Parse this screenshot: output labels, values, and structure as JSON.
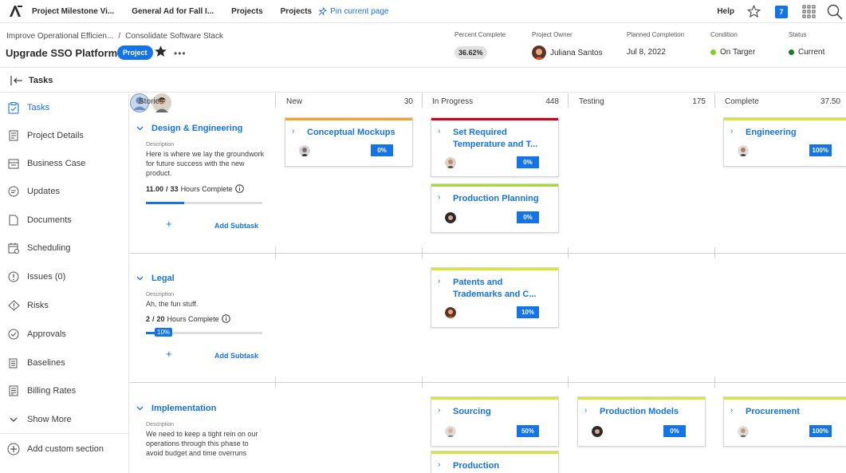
{
  "topnav": {
    "tabs": [
      "Project Milestone Vi...",
      "General Ad for Fall I...",
      "Projects",
      "Projects"
    ],
    "pin_label": "Pin current page",
    "help_label": "Help",
    "notification_count": "7"
  },
  "header": {
    "breadcrumbs": [
      "Improve Operational Efficien...",
      "/",
      "Consolidate Software Stack"
    ],
    "title": "Upgrade SSO Platform",
    "tag": "Project",
    "more": "•••",
    "percent_complete_label": "Percent Complete",
    "percent_complete_value": "36.62%",
    "owner_label": "Project Owner",
    "owner_value": "Juliana Santos",
    "planned_label": "Planned Completion",
    "planned_value": "Jul 8, 2022",
    "condition_label": "Condition",
    "condition_value": "On Targer",
    "condition_color": "#7ed321",
    "status_label": "Status",
    "status_value": "Current",
    "status_color": "#1d7a1d"
  },
  "subheader": {
    "title": "Tasks"
  },
  "sidebar": {
    "items": [
      {
        "label": "Tasks",
        "icon": "tasks-icon",
        "active": true
      },
      {
        "label": "Project Details",
        "icon": "document-icon"
      },
      {
        "label": "Business Case",
        "icon": "briefcase-icon"
      },
      {
        "label": "Updates",
        "icon": "chat-icon"
      },
      {
        "label": "Documents",
        "icon": "file-icon"
      },
      {
        "label": "Scheduling",
        "icon": "calendar-icon"
      },
      {
        "label": "Issues (0)",
        "icon": "alert-circle-icon"
      },
      {
        "label": "Risks",
        "icon": "warning-icon"
      },
      {
        "label": "Approvals",
        "icon": "check-circle-icon"
      },
      {
        "label": "Baselines",
        "icon": "baseline-icon"
      },
      {
        "label": "Billing Rates",
        "icon": "billing-icon"
      },
      {
        "label": "Show More",
        "icon": "chevron-down-icon"
      }
    ],
    "add_section": "Add custom section"
  },
  "board": {
    "columns": [
      {
        "name": "Stories",
        "count": ""
      },
      {
        "name": "New",
        "count": "30"
      },
      {
        "name": "In Progress",
        "count": "448"
      },
      {
        "name": "Testing",
        "count": "175"
      },
      {
        "name": "Complete",
        "count": "37.50"
      }
    ],
    "stories": [
      {
        "title": "Design & Engineering",
        "desc_label": "Description",
        "desc": "Here is where we lay the groundwork for future success with the new product.",
        "hours_done": "11.00",
        "hours_total": "33",
        "hours_suffix": "Hours Complete",
        "progress": 0.33,
        "add_subtask": "Add Subtask"
      },
      {
        "title": "Legal",
        "desc_label": "Description",
        "desc": "Ah, the fun stuff.",
        "hours_done": "2",
        "hours_total": "20",
        "hours_suffix": "Hours Complete",
        "progress": 0.1,
        "progress_label": "10%",
        "add_subtask": "Add Subtask"
      },
      {
        "title": "Implementation",
        "desc_label": "Description",
        "desc": "We need to keep a tight rein on our operations through this phase to avoid budget and time overruns"
      }
    ],
    "cards": {
      "c1": {
        "title": "Conceptual Mockups",
        "pct": "0%",
        "strip": "#f5a623"
      },
      "c2": {
        "title": "Set Required Temperature and T...",
        "pct": "0%",
        "strip": "#d0021b"
      },
      "c3": {
        "title": "Engineering",
        "pct": "100%",
        "strip": "#d8e639"
      },
      "c4": {
        "title": "Production Planning",
        "pct": "0%",
        "strip": "#a7d93b"
      },
      "c5": {
        "title": "Patents and Trademarks and C...",
        "pct": "10%",
        "strip": "#d8e639"
      },
      "c6": {
        "title": "Sourcing",
        "pct": "50%",
        "strip": "#d8e639"
      },
      "c7": {
        "title": "Production Models",
        "pct": "0%",
        "strip": "#d8e639"
      },
      "c8": {
        "title": "Procurement",
        "pct": "100%",
        "strip": "#d8e639"
      },
      "c9": {
        "title": "Production",
        "pct": "",
        "strip": "#d8e639"
      }
    }
  }
}
